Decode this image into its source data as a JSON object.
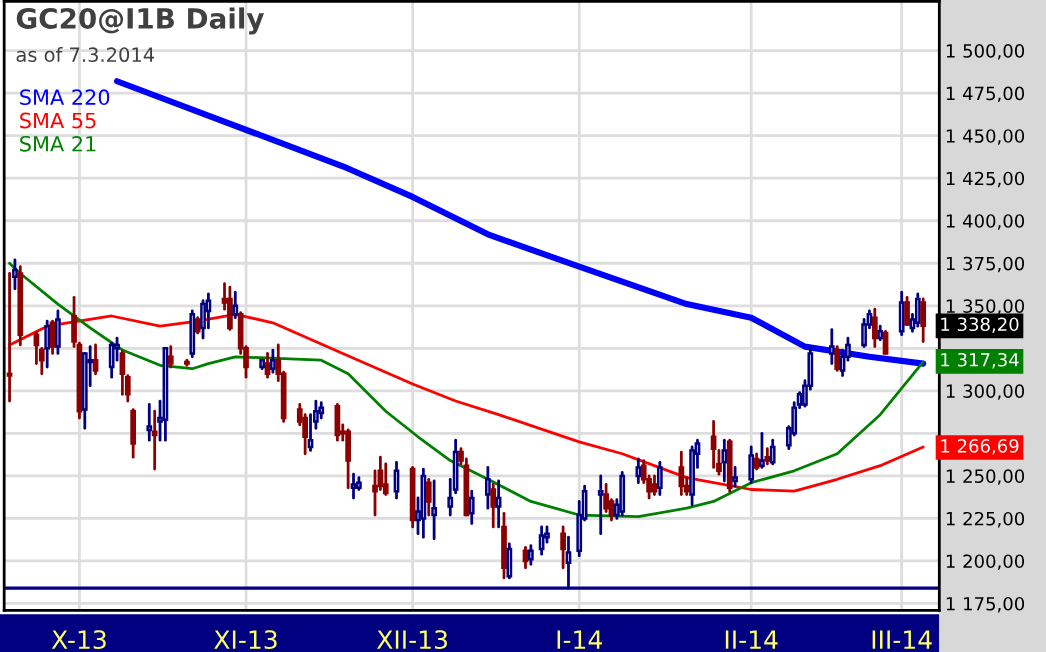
{
  "chart_data": {
    "type": "candlestick",
    "title": "GC20@I1B Daily",
    "subtitle": "as of 7.3.2014",
    "x": [
      "2013-09-18",
      "2013-09-19",
      "2013-09-20",
      "2013-09-23",
      "2013-09-24",
      "2013-09-25",
      "2013-09-26",
      "2013-09-27",
      "2013-09-30",
      "2013-10-01",
      "2013-10-02",
      "2013-10-03",
      "2013-10-04",
      "2013-10-07",
      "2013-10-08",
      "2013-10-09",
      "2013-10-10",
      "2013-10-11",
      "2013-10-14",
      "2013-10-15",
      "2013-10-16",
      "2013-10-17",
      "2013-10-18",
      "2013-10-21",
      "2013-10-22",
      "2013-10-23",
      "2013-10-24",
      "2013-10-25",
      "2013-10-28",
      "2013-10-29",
      "2013-10-30",
      "2013-10-31",
      "2013-11-01",
      "2013-11-04",
      "2013-11-05",
      "2013-11-06",
      "2013-11-07",
      "2013-11-08",
      "2013-11-11",
      "2013-11-12",
      "2013-11-13",
      "2013-11-14",
      "2013-11-15",
      "2013-11-18",
      "2013-11-19",
      "2013-11-20",
      "2013-11-21",
      "2013-11-22",
      "2013-11-25",
      "2013-11-26",
      "2013-11-27",
      "2013-11-29",
      "2013-12-02",
      "2013-12-03",
      "2013-12-04",
      "2013-12-05",
      "2013-12-06",
      "2013-12-09",
      "2013-12-10",
      "2013-12-11",
      "2013-12-12",
      "2013-12-13",
      "2013-12-16",
      "2013-12-17",
      "2013-12-18",
      "2013-12-19",
      "2013-12-20",
      "2013-12-23",
      "2013-12-24",
      "2013-12-26",
      "2013-12-27",
      "2013-12-30",
      "2013-12-31",
      "2014-01-02",
      "2014-01-03",
      "2014-01-06",
      "2014-01-07",
      "2014-01-08",
      "2014-01-09",
      "2014-01-10",
      "2014-01-13",
      "2014-01-14",
      "2014-01-15",
      "2014-01-16",
      "2014-01-17",
      "2014-01-21",
      "2014-01-22",
      "2014-01-23",
      "2014-01-24",
      "2014-01-27",
      "2014-01-28",
      "2014-01-29",
      "2014-01-30",
      "2014-01-31",
      "2014-02-03",
      "2014-02-04",
      "2014-02-05",
      "2014-02-06",
      "2014-02-07",
      "2014-02-10",
      "2014-02-11",
      "2014-02-12",
      "2014-02-13",
      "2014-02-14",
      "2014-02-18",
      "2014-02-19",
      "2014-02-20",
      "2014-02-21",
      "2014-02-24",
      "2014-02-25",
      "2014-02-26",
      "2014-02-27",
      "2014-02-28",
      "2014-03-03",
      "2014-03-04",
      "2014-03-05",
      "2014-03-06",
      "2014-03-07"
    ],
    "ohlc": [
      [
        1310,
        1369,
        1294,
        1309
      ],
      [
        1367,
        1377,
        1360,
        1371
      ],
      [
        1369,
        1373,
        1327,
        1333
      ],
      [
        1333,
        1334,
        1316,
        1327
      ],
      [
        1324,
        1325,
        1310,
        1318
      ],
      [
        1325,
        1341,
        1314,
        1338
      ],
      [
        1340,
        1341,
        1322,
        1326
      ],
      [
        1326,
        1347,
        1322,
        1342
      ],
      [
        1344,
        1355,
        1326,
        1329
      ],
      [
        1327,
        1328,
        1284,
        1288
      ],
      [
        1289,
        1322,
        1278,
        1322
      ],
      [
        1317,
        1326,
        1303,
        1318
      ],
      [
        1318,
        1327,
        1310,
        1312
      ],
      [
        1314,
        1328,
        1308,
        1327
      ],
      [
        1325,
        1331,
        1318,
        1327
      ],
      [
        1322,
        1323,
        1298,
        1310
      ],
      [
        1308,
        1309,
        1294,
        1298
      ],
      [
        1288,
        1289,
        1261,
        1269
      ],
      [
        1277,
        1292,
        1271,
        1279
      ],
      [
        1276,
        1288,
        1254,
        1274
      ],
      [
        1282,
        1294,
        1271,
        1284
      ],
      [
        1283,
        1325,
        1271,
        1325
      ],
      [
        1320,
        1326,
        1314,
        1316
      ],
      [
        1317,
        1318,
        1315,
        1316
      ],
      [
        1322,
        1347,
        1320,
        1345
      ],
      [
        1342,
        1343,
        1334,
        1335
      ],
      [
        1337,
        1353,
        1331,
        1351
      ],
      [
        1347,
        1357,
        1337,
        1353
      ],
      [
        1354,
        1363,
        1348,
        1352
      ],
      [
        1354,
        1361,
        1336,
        1337
      ],
      [
        1345,
        1358,
        1343,
        1350
      ],
      [
        1345,
        1346,
        1322,
        1325
      ],
      [
        1325,
        1326,
        1308,
        1314
      ],
      [
        1314,
        1318,
        1313,
        1318
      ],
      [
        1316,
        1322,
        1308,
        1310
      ],
      [
        1313,
        1324,
        1311,
        1318
      ],
      [
        1318,
        1327,
        1306,
        1310
      ],
      [
        1310,
        1311,
        1282,
        1284
      ],
      [
        1289,
        1292,
        1280,
        1282
      ],
      [
        1284,
        1286,
        1263,
        1273
      ],
      [
        1267,
        1286,
        1265,
        1271
      ],
      [
        1282,
        1294,
        1278,
        1288
      ],
      [
        1287,
        1293,
        1284,
        1290
      ],
      [
        1291,
        1292,
        1271,
        1274
      ],
      [
        1276,
        1280,
        1271,
        1275
      ],
      [
        1276,
        1277,
        1243,
        1259
      ],
      [
        1243,
        1251,
        1237,
        1245
      ],
      [
        1243,
        1249,
        1242,
        1246
      ],
      [
        1244,
        1253,
        1227,
        1241
      ],
      [
        1253,
        1261,
        1242,
        1244
      ],
      [
        1245,
        1257,
        1239,
        1240
      ],
      [
        1241,
        1258,
        1237,
        1253
      ],
      [
        1254,
        1255,
        1220,
        1224
      ],
      [
        1224,
        1237,
        1216,
        1229
      ],
      [
        1225,
        1254,
        1214,
        1250
      ],
      [
        1246,
        1248,
        1227,
        1235
      ],
      [
        1227,
        1247,
        1213,
        1231
      ],
      [
        1232,
        1248,
        1227,
        1237
      ],
      [
        1242,
        1271,
        1240,
        1264
      ],
      [
        1264,
        1266,
        1257,
        1259
      ],
      [
        1256,
        1260,
        1227,
        1227
      ],
      [
        1228,
        1241,
        1222,
        1237
      ],
      [
        1239,
        1255,
        1231,
        1248
      ],
      [
        1242,
        1245,
        1220,
        1232
      ],
      [
        1232,
        1247,
        1220,
        1237
      ],
      [
        1220,
        1228,
        1190,
        1196
      ],
      [
        1191,
        1210,
        1190,
        1207
      ],
      [
        1206,
        1208,
        1196,
        1200
      ],
      [
        1201,
        1209,
        1198,
        1206
      ],
      [
        1207,
        1220,
        1204,
        1215
      ],
      [
        1214,
        1220,
        1211,
        1216
      ],
      [
        1216,
        1220,
        1196,
        1207
      ],
      [
        1199,
        1214,
        1184,
        1205
      ],
      [
        1206,
        1235,
        1203,
        1227
      ],
      [
        1225,
        1244,
        1224,
        1241
      ],
      [
        1239,
        1250,
        1216,
        1241
      ],
      [
        1239,
        1245,
        1229,
        1231
      ],
      [
        1235,
        1236,
        1224,
        1227
      ],
      [
        1227,
        1236,
        1225,
        1233
      ],
      [
        1229,
        1252,
        1227,
        1250
      ],
      [
        1250,
        1260,
        1246,
        1255
      ],
      [
        1256,
        1259,
        1246,
        1248
      ],
      [
        1248,
        1250,
        1237,
        1241
      ],
      [
        1245,
        1250,
        1239,
        1241
      ],
      [
        1243,
        1258,
        1239,
        1255
      ],
      [
        1255,
        1264,
        1239,
        1244
      ],
      [
        1244,
        1249,
        1239,
        1241
      ],
      [
        1239,
        1267,
        1233,
        1265
      ],
      [
        1263,
        1271,
        1255,
        1269
      ],
      [
        1273,
        1282,
        1255,
        1266
      ],
      [
        1257,
        1265,
        1251,
        1253
      ],
      [
        1258,
        1271,
        1247,
        1265
      ],
      [
        1270,
        1271,
        1241,
        1243
      ],
      [
        1247,
        1255,
        1244,
        1249
      ],
      [
        1248,
        1267,
        1246,
        1262
      ],
      [
        1260,
        1263,
        1254,
        1255
      ],
      [
        1256,
        1275,
        1255,
        1259
      ],
      [
        1261,
        1266,
        1257,
        1259
      ],
      [
        1258,
        1271,
        1257,
        1267
      ],
      [
        1268,
        1279,
        1266,
        1278
      ],
      [
        1275,
        1293,
        1274,
        1290
      ],
      [
        1292,
        1299,
        1290,
        1298
      ],
      [
        1292,
        1306,
        1291,
        1303
      ],
      [
        1303,
        1326,
        1301,
        1322
      ],
      [
        1322,
        1336,
        1316,
        1326
      ],
      [
        1324,
        1326,
        1312,
        1313
      ],
      [
        1312,
        1324,
        1309,
        1320
      ],
      [
        1320,
        1331,
        1318,
        1327
      ],
      [
        1327,
        1342,
        1326,
        1339
      ],
      [
        1339,
        1347,
        1337,
        1345
      ],
      [
        1343,
        1348,
        1326,
        1331
      ],
      [
        1331,
        1338,
        1330,
        1335
      ],
      [
        1334,
        1335,
        1322,
        1322
      ],
      [
        1335,
        1358,
        1333,
        1352
      ],
      [
        1352,
        1355,
        1339,
        1339
      ],
      [
        1337,
        1345,
        1335,
        1342
      ],
      [
        1340,
        1357,
        1338,
        1354
      ],
      [
        1352,
        1354,
        1329,
        1338.2
      ]
    ],
    "series": [
      {
        "name": "SMA 220",
        "type": "line",
        "color": "#0000ff",
        "x": [
          "2013-10-08",
          "2013-11-19",
          "2013-12-02",
          "2013-12-16",
          "2014-01-02",
          "2014-01-22",
          "2014-02-03",
          "2014-02-13",
          "2014-02-25",
          "2014-03-07"
        ],
        "values": [
          1482,
          1432,
          1414,
          1392,
          1373,
          1351,
          1343,
          1326,
          1320,
          1316
        ]
      },
      {
        "name": "SMA 55",
        "type": "line",
        "color": "#ff0000",
        "x": [
          "2013-09-18",
          "2013-09-25",
          "2013-10-07",
          "2013-10-16",
          "2013-10-23",
          "2013-10-30",
          "2013-11-06",
          "2013-11-19",
          "2013-12-02",
          "2013-12-10",
          "2013-12-18",
          "2014-01-02",
          "2014-01-10",
          "2014-01-22",
          "2014-01-27",
          "2014-02-03",
          "2014-02-11",
          "2014-02-19",
          "2014-02-27",
          "2014-03-07"
        ],
        "values": [
          1327,
          1338,
          1344,
          1338,
          1341,
          1345,
          1340,
          1322,
          1304,
          1294,
          1286,
          1270,
          1263,
          1249,
          1246,
          1242,
          1241,
          1248,
          1256,
          1267
        ]
      },
      {
        "name": "SMA 21",
        "type": "line",
        "color": "#008000",
        "x": [
          "2013-09-18",
          "2013-09-20",
          "2013-09-27",
          "2013-10-03",
          "2013-10-09",
          "2013-10-16",
          "2013-10-22",
          "2013-10-25",
          "2013-10-30",
          "2013-11-08",
          "2013-11-15",
          "2013-11-20",
          "2013-11-27",
          "2013-12-03",
          "2013-12-09",
          "2013-12-16",
          "2013-12-24",
          "2014-01-02",
          "2014-01-13",
          "2014-01-22",
          "2014-01-27",
          "2014-02-03",
          "2014-02-11",
          "2014-02-19",
          "2014-02-27",
          "2014-03-07"
        ],
        "values": [
          1375,
          1369,
          1351,
          1337,
          1324,
          1315,
          1313,
          1316,
          1320,
          1319,
          1318,
          1310,
          1288,
          1273,
          1259,
          1248,
          1235,
          1227,
          1226,
          1231,
          1235,
          1246,
          1253,
          1263,
          1286,
          1317
        ]
      }
    ],
    "annotations": [
      {
        "text": "1 338,20",
        "x": "2014-03-07",
        "y": 1338.2
      },
      {
        "text": "1 317,34",
        "x": "2014-03-07",
        "y": 1317.34
      },
      {
        "text": "1 266,69",
        "x": "2014-03-07",
        "y": 1266.69
      }
    ],
    "ref_lines": [
      {
        "axis": "y",
        "value": 1184,
        "color": "#000080"
      }
    ],
    "xlim": [
      "2013-09-17",
      "2014-03-10"
    ],
    "xticks": [
      {
        "value": "2013-10-01",
        "label": "X-13"
      },
      {
        "value": "2013-11-01",
        "label": "XI-13"
      },
      {
        "value": "2013-12-02",
        "label": "XII-13"
      },
      {
        "value": "2014-01-02",
        "label": "I-14"
      },
      {
        "value": "2014-02-03",
        "label": "II-14"
      },
      {
        "value": "2014-03-03",
        "label": "III-14"
      }
    ],
    "ylim": [
      1171,
      1529
    ],
    "yticks": [
      {
        "value": 1175,
        "label": "1 175,00"
      },
      {
        "value": 1200,
        "label": "1 200,00"
      },
      {
        "value": 1225,
        "label": "1 225,00"
      },
      {
        "value": 1250,
        "label": "1 250,00"
      },
      {
        "value": 1275,
        "label": null
      },
      {
        "value": 1300,
        "label": "1 300,00"
      },
      {
        "value": 1325,
        "label": null
      },
      {
        "value": 1350,
        "label": "1 350,00"
      },
      {
        "value": 1375,
        "label": "1 375,00"
      },
      {
        "value": 1400,
        "label": "1 400,00"
      },
      {
        "value": 1425,
        "label": "1 425,00"
      },
      {
        "value": 1450,
        "label": "1 450,00"
      },
      {
        "value": 1475,
        "label": "1 475,00"
      },
      {
        "value": 1500,
        "label": "1 500,00"
      }
    ],
    "grid": true,
    "legend": "top left"
  }
}
